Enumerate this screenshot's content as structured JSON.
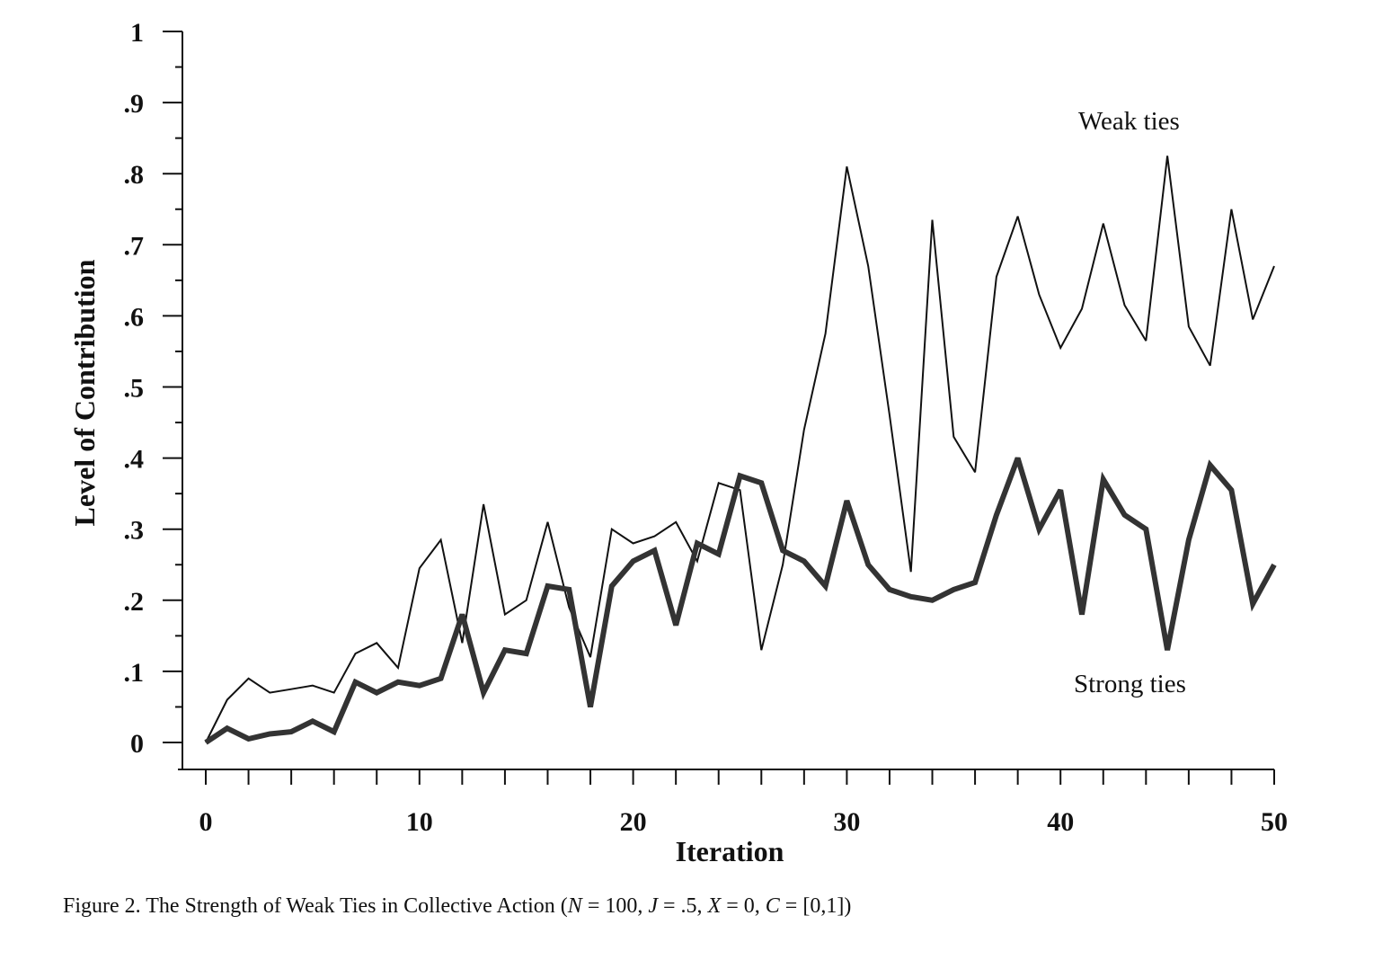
{
  "chart_data": {
    "type": "line",
    "ylabel": "Level of Contribution",
    "xlabel": "Iteration",
    "xlim": [
      0,
      50
    ],
    "ylim": [
      0,
      1
    ],
    "xticks": [
      0,
      10,
      20,
      30,
      40,
      50
    ],
    "yticks": [
      {
        "value": 0,
        "label": "0"
      },
      {
        "value": 0.1,
        "label": ".1"
      },
      {
        "value": 0.2,
        "label": ".2"
      },
      {
        "value": 0.3,
        "label": ".3"
      },
      {
        "value": 0.4,
        "label": ".4"
      },
      {
        "value": 0.5,
        "label": ".5"
      },
      {
        "value": 0.6,
        "label": ".6"
      },
      {
        "value": 0.7,
        "label": ".7"
      },
      {
        "value": 0.8,
        "label": ".8"
      },
      {
        "value": 0.9,
        "label": ".9"
      },
      {
        "value": 1,
        "label": "1"
      }
    ],
    "grid": false,
    "x": [
      0,
      1,
      2,
      3,
      4,
      5,
      6,
      7,
      8,
      9,
      10,
      11,
      12,
      13,
      14,
      15,
      16,
      17,
      18,
      19,
      20,
      21,
      22,
      23,
      24,
      25,
      26,
      27,
      28,
      29,
      30,
      31,
      32,
      33,
      34,
      35,
      36,
      37,
      38,
      39,
      40,
      41,
      42,
      43,
      44,
      45,
      46,
      47,
      48,
      49,
      50
    ],
    "series": [
      {
        "name": "Weak ties",
        "color": "#111111",
        "values": [
          0.0,
          0.06,
          0.09,
          0.07,
          0.075,
          0.08,
          0.07,
          0.125,
          0.14,
          0.105,
          0.245,
          0.285,
          0.14,
          0.335,
          0.18,
          0.2,
          0.31,
          0.19,
          0.12,
          0.3,
          0.28,
          0.29,
          0.31,
          0.255,
          0.365,
          0.355,
          0.13,
          0.25,
          0.44,
          0.575,
          0.81,
          0.67,
          0.46,
          0.24,
          0.735,
          0.43,
          0.38,
          0.655,
          0.74,
          0.63,
          0.555,
          0.61,
          0.73,
          0.615,
          0.565,
          0.825,
          0.585,
          0.53,
          0.75,
          0.595,
          0.67
        ]
      },
      {
        "name": "Strong ties",
        "color": "#333333",
        "values": [
          0.0,
          0.02,
          0.005,
          0.012,
          0.015,
          0.03,
          0.015,
          0.085,
          0.07,
          0.085,
          0.08,
          0.09,
          0.18,
          0.07,
          0.13,
          0.125,
          0.22,
          0.215,
          0.05,
          0.22,
          0.255,
          0.27,
          0.165,
          0.28,
          0.265,
          0.375,
          0.365,
          0.27,
          0.255,
          0.22,
          0.34,
          0.25,
          0.215,
          0.205,
          0.2,
          0.215,
          0.225,
          0.32,
          0.4,
          0.3,
          0.355,
          0.18,
          0.37,
          0.32,
          0.3,
          0.13,
          0.285,
          0.39,
          0.355,
          0.195,
          0.25
        ]
      }
    ],
    "caption": {
      "prefix": "Figure 2.  The Strength of Weak Ties in Collective Action (",
      "n_var": "N",
      "n_val": " = 100, ",
      "j_var": "J",
      "j_val": " = .5, ",
      "x_var": "X",
      "x_val": " = 0, ",
      "c_var": "C",
      "c_val": " = [0,1])"
    }
  }
}
